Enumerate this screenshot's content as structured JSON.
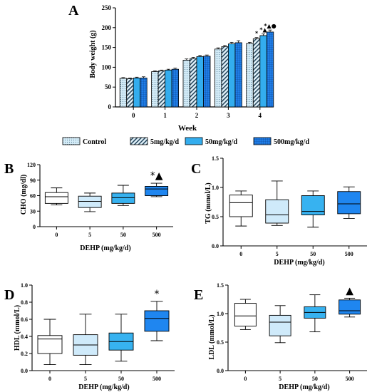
{
  "colors": {
    "control": "#cfe9f7",
    "d5": "#d9eefa",
    "d50": "#33adee",
    "d500": "#1f7ee8",
    "box_control": "#ffffff",
    "box_5": "#cfeafa",
    "box_50": "#37b2f0",
    "box_500": "#1f86f0"
  },
  "chart_data": [
    {
      "panel": "A",
      "type": "bar",
      "xlabel": "Week",
      "ylabel": "Body weight (g)",
      "ylim": [
        0,
        250
      ],
      "yticks": [
        "0",
        "50",
        "100",
        "150",
        "200",
        "250"
      ],
      "categories": [
        "0",
        "1",
        "2",
        "3",
        "4"
      ],
      "series": [
        {
          "name": "Control",
          "pattern": "dots",
          "values": [
            72,
            89,
            118,
            146,
            160
          ],
          "errors": [
            2,
            2,
            3,
            3,
            3
          ]
        },
        {
          "name": "5mg/kg/d",
          "pattern": "diagonal",
          "values": [
            71,
            91,
            122,
            152,
            172
          ],
          "errors": [
            2,
            2,
            3,
            3,
            3
          ]
        },
        {
          "name": "50mg/kg/d",
          "pattern": "solid",
          "values": [
            73,
            93,
            127,
            159,
            180
          ],
          "errors": [
            2,
            2,
            3,
            4,
            4
          ]
        },
        {
          "name": "500mg/kg/d",
          "pattern": "grid",
          "values": [
            73,
            95,
            128,
            162,
            189
          ],
          "errors": [
            3,
            3,
            3,
            5,
            5
          ]
        }
      ],
      "annotations": [
        {
          "category": "4",
          "series": "5mg/kg/d",
          "text": "*"
        },
        {
          "category": "4",
          "series": "50mg/kg/d",
          "text": "*▲"
        },
        {
          "category": "4",
          "series": "500mg/kg/d",
          "text": "*▲●"
        }
      ],
      "legend": "bottom"
    },
    {
      "panel": "B",
      "type": "box",
      "xlabel": "DEHP  (mg/kg/d)",
      "ylabel": "CHO (mg/dl)",
      "ylim": [
        0,
        120
      ],
      "yticks": [
        "0",
        "30",
        "60",
        "90",
        "120"
      ],
      "categories": [
        "0",
        "5",
        "50",
        "500"
      ],
      "boxes": [
        {
          "min": 42,
          "q1": 45,
          "median": 58,
          "q3": 66,
          "max": 75
        },
        {
          "min": 29,
          "q1": 37,
          "median": 49,
          "q3": 59,
          "max": 65
        },
        {
          "min": 41,
          "q1": 45,
          "median": 56,
          "q3": 65,
          "max": 80
        },
        {
          "min": 58,
          "q1": 60,
          "median": 73,
          "q3": 78,
          "max": 84
        }
      ],
      "annotations": [
        {
          "category": "500",
          "text": "*▲"
        }
      ]
    },
    {
      "panel": "C",
      "type": "box",
      "xlabel": "DEHP (mg/kg/d)",
      "ylabel": "TG (mmol/L)",
      "ylim": [
        0,
        1.5
      ],
      "yticks": [
        "0.0",
        "0.5",
        "1.0",
        "1.5"
      ],
      "categories": [
        "0",
        "5",
        "50",
        "500"
      ],
      "boxes": [
        {
          "min": 0.34,
          "q1": 0.5,
          "median": 0.74,
          "q3": 0.87,
          "max": 0.94
        },
        {
          "min": 0.35,
          "q1": 0.39,
          "median": 0.53,
          "q3": 0.79,
          "max": 1.11
        },
        {
          "min": 0.32,
          "q1": 0.53,
          "median": 0.59,
          "q3": 0.86,
          "max": 0.94
        },
        {
          "min": 0.47,
          "q1": 0.55,
          "median": 0.72,
          "q3": 0.93,
          "max": 1.01
        }
      ]
    },
    {
      "panel": "D",
      "type": "box",
      "xlabel": "DEHP (mg/kg/d)",
      "ylabel": "HDL (mmol/L)",
      "ylim": [
        0,
        1.0
      ],
      "yticks": [
        "0.0",
        "0.2",
        "0.4",
        "0.6",
        "0.8",
        "1.0"
      ],
      "categories": [
        "0",
        "5",
        "50",
        "500"
      ],
      "boxes": [
        {
          "min": 0.07,
          "q1": 0.2,
          "median": 0.37,
          "q3": 0.41,
          "max": 0.6
        },
        {
          "min": 0.07,
          "q1": 0.18,
          "median": 0.3,
          "q3": 0.42,
          "max": 0.66
        },
        {
          "min": 0.11,
          "q1": 0.24,
          "median": 0.34,
          "q3": 0.44,
          "max": 0.66
        },
        {
          "min": 0.35,
          "q1": 0.46,
          "median": 0.61,
          "q3": 0.7,
          "max": 0.81
        }
      ],
      "annotations": [
        {
          "category": "500",
          "text": "*"
        }
      ]
    },
    {
      "panel": "E",
      "type": "box",
      "xlabel": "DEHP (mg/kg/d)",
      "ylabel": "LDL (mmol/L)",
      "ylim": [
        0,
        1.5
      ],
      "yticks": [
        "0.0",
        "0.5",
        "1.0",
        "1.5"
      ],
      "categories": [
        "0",
        "5",
        "50",
        "500"
      ],
      "boxes": [
        {
          "min": 0.72,
          "q1": 0.78,
          "median": 0.96,
          "q3": 1.18,
          "max": 1.25
        },
        {
          "min": 0.49,
          "q1": 0.61,
          "median": 0.85,
          "q3": 0.97,
          "max": 1.14
        },
        {
          "min": 0.68,
          "q1": 0.92,
          "median": 1.02,
          "q3": 1.12,
          "max": 1.33
        },
        {
          "min": 0.94,
          "q1": 0.99,
          "median": 1.05,
          "q3": 1.24,
          "max": 1.27
        }
      ],
      "annotations": [
        {
          "category": "500",
          "text": "▲"
        }
      ]
    }
  ]
}
